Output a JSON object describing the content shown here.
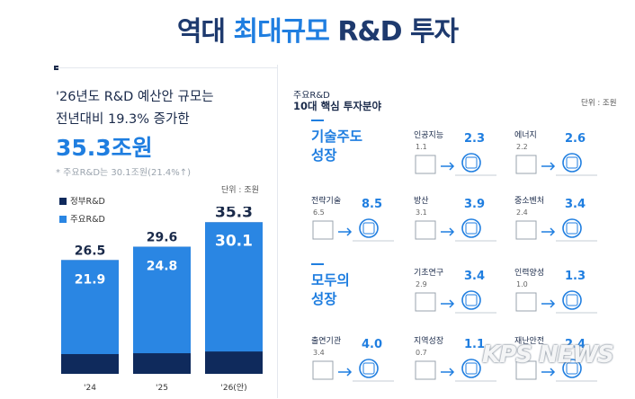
{
  "title": {
    "pre": "역대 ",
    "highlight": "최대규모",
    "post": " R&D 투자"
  },
  "left": {
    "line1": "'26년도 R&D 예산안 규모는",
    "line2": "전년대비 19.3% 증가한",
    "total": "35.3조원",
    "note": "* 주요R&D는 30.1조원(21.4%↑)",
    "unit": "단위 : 조원",
    "legend": [
      {
        "label": "정부R&D",
        "color": "#0f2a5c"
      },
      {
        "label": "주요R&D",
        "color": "#2a86e3"
      }
    ]
  },
  "chart_data": {
    "type": "bar",
    "categories": [
      "'24",
      "'25",
      "'26(안)"
    ],
    "series": [
      {
        "name": "정부R&D",
        "values": [
          26.5,
          29.6,
          35.3
        ]
      },
      {
        "name": "주요R&D",
        "values": [
          21.9,
          24.8,
          30.1
        ]
      }
    ],
    "total_labels": [
      "26.5",
      "29.6",
      "35.3"
    ],
    "inner_labels": [
      "21.9",
      "24.8",
      "30.1"
    ],
    "ylim": [
      0,
      36
    ],
    "colors": {
      "total": "#0f2a5c",
      "major": "#2a86e3"
    }
  },
  "right": {
    "tag": "주요R&D",
    "title": "10대 핵심 투자분야",
    "unit": "단위 : 조원",
    "groups": [
      {
        "line1": "기술주도",
        "line2": "성장"
      },
      {
        "line1": "모두의",
        "line2": "성장"
      }
    ],
    "fields": [
      {
        "name": "인공지능",
        "old": "1.1",
        "new": "2.3",
        "icon": "ai-head-icon"
      },
      {
        "name": "에너지",
        "old": "2.2",
        "new": "2.6",
        "icon": "lightbulb-icon"
      },
      {
        "name": "전략기술",
        "old": "6.5",
        "new": "8.5",
        "icon": "touch-hand-icon"
      },
      {
        "name": "방산",
        "old": "3.1",
        "new": "3.9",
        "icon": "tank-icon"
      },
      {
        "name": "중소벤처",
        "old": "2.4",
        "new": "3.4",
        "icon": "building-icon"
      },
      {
        "name": "기초연구",
        "old": "2.9",
        "new": "3.4",
        "icon": "microscope-icon"
      },
      {
        "name": "인력양성",
        "old": "1.0",
        "new": "1.3",
        "icon": "person-icon"
      },
      {
        "name": "출연기관",
        "old": "3.4",
        "new": "4.0",
        "icon": "office-icon"
      },
      {
        "name": "지역성장",
        "old": "0.7",
        "new": "1.1",
        "icon": "map-icon"
      },
      {
        "name": "재난안전",
        "old": "",
        "new": "2.4",
        "icon": "shield-icon"
      }
    ]
  },
  "watermark": "KPS NEWS"
}
